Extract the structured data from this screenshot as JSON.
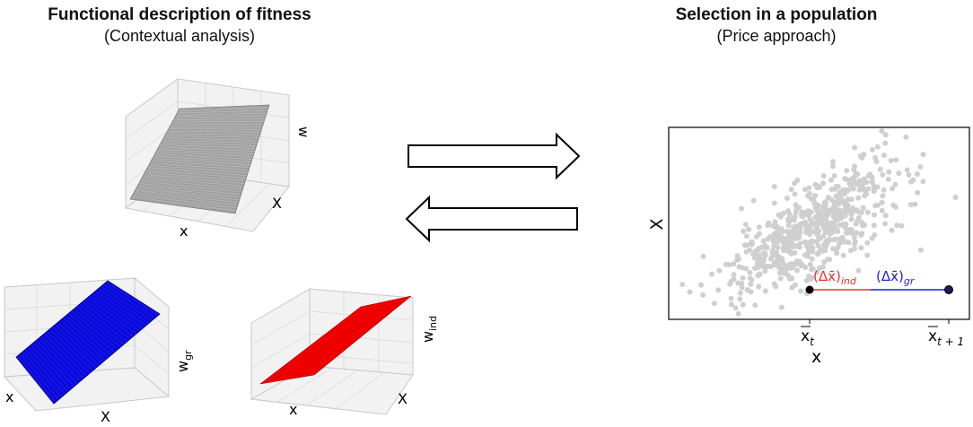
{
  "left_panel": {
    "title": "Functional description of fitness",
    "subtitle": "(Contextual analysis)",
    "plot_top": {
      "x_label": "x",
      "y_label": "X",
      "z_label": "w",
      "surface_color": "#9a9a9a"
    },
    "plot_group": {
      "x_label": "x",
      "y_label": "X",
      "z_label": "w",
      "z_subscript": "gr",
      "surface_color": "#1010ee"
    },
    "plot_individual": {
      "x_label": "x",
      "y_label": "X",
      "z_label": "w",
      "z_subscript": "ind",
      "surface_color": "#ee0000"
    }
  },
  "right_panel": {
    "title": "Selection in a population",
    "subtitle": "(Price approach)",
    "chart": {
      "x_label": "x",
      "y_label": "X",
      "tick_t": "x",
      "tick_t_sub": "t",
      "tick_t1": "x",
      "tick_t1_sub": "t + 1",
      "delta_ind": "(Δx̄)",
      "delta_ind_sub": "ind",
      "delta_gr": "(Δx̄)",
      "delta_gr_sub": "gr",
      "color_ind": "#e8322d",
      "color_gr": "#1f1fd8",
      "point_color": "#cfcfcf"
    }
  },
  "arrows": {
    "right": "right-arrow",
    "left": "left-arrow"
  }
}
